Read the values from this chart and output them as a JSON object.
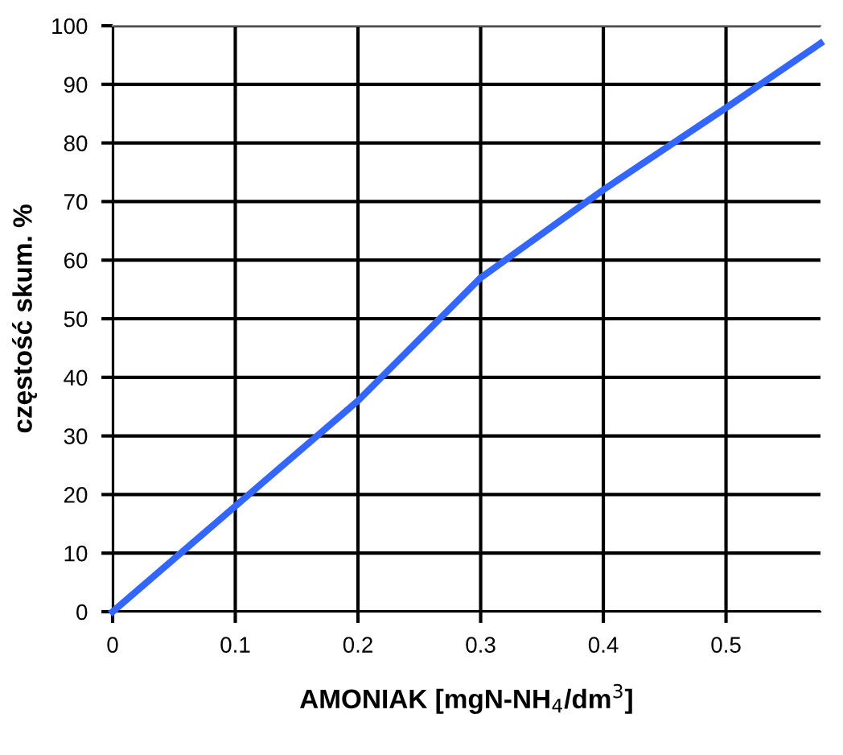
{
  "chart_data": {
    "type": "line",
    "xlabel": "AMONIAK [mgN-NH$_{4}$/dm$^{3}$]",
    "ylabel": "częstość skum. %",
    "x": [
      0,
      0.1,
      0.2,
      0.3,
      0.4,
      0.5,
      0.577
    ],
    "series": [
      {
        "color": "#3366ff",
        "values": [
          0,
          18,
          36,
          57,
          72,
          86,
          97
        ]
      }
    ],
    "xlim": [
      0,
      0.577
    ],
    "xticks": [
      0,
      0.1,
      0.2,
      0.3,
      0.4,
      0.5
    ],
    "ylim": [
      0,
      100
    ],
    "yticks": [
      0,
      10,
      20,
      30,
      40,
      50,
      60,
      70,
      80,
      90,
      100
    ],
    "grid": true,
    "legend": false,
    "marker": "none",
    "line_style": "solid"
  }
}
